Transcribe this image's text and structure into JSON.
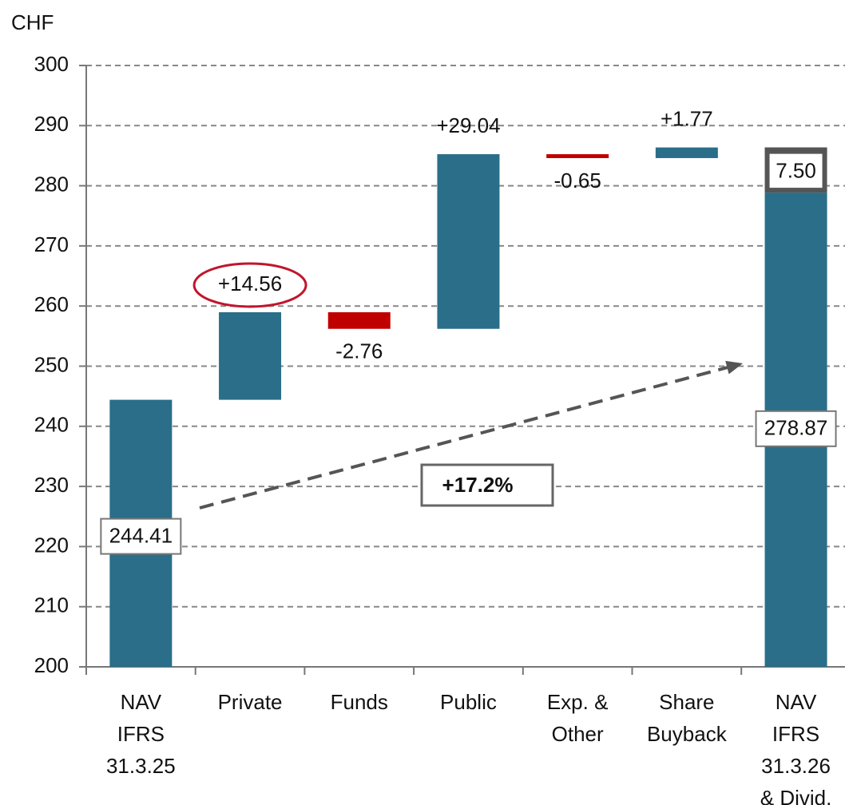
{
  "chart_data": {
    "type": "waterfall",
    "y_label": "CHF",
    "categories": [
      [
        "NAV",
        "IFRS",
        "31.3.25"
      ],
      [
        "Private"
      ],
      [
        "Funds"
      ],
      [
        "Public"
      ],
      [
        "Exp. &",
        "Other"
      ],
      [
        "Share",
        "Buyback"
      ],
      [
        "NAV",
        "IFRS",
        "31.3.26",
        "& Divid."
      ]
    ],
    "measures": [
      "absolute",
      "relative",
      "relative",
      "relative",
      "relative",
      "relative",
      "total"
    ],
    "values": [
      244.41,
      14.56,
      -2.76,
      29.04,
      -0.65,
      1.77,
      278.87
    ],
    "value_labels": [
      "244.41",
      "+14.56",
      "-2.76",
      "+29.04",
      "-0.65",
      "+1.77",
      "278.87"
    ],
    "colors": {
      "increase": "#2a6e89",
      "decrease": "#c00000",
      "total": "#2a6e89"
    },
    "label_colors": {
      "increase": "#3a7d99",
      "decrease": "#a3213e"
    },
    "dividend": {
      "value": 7.5,
      "value_label": "7.50"
    },
    "annotation": "+17.2%",
    "ylim": [
      200,
      300
    ],
    "yticks": [
      200,
      210,
      220,
      230,
      240,
      250,
      260,
      270,
      280,
      290,
      300
    ],
    "grid": true
  }
}
